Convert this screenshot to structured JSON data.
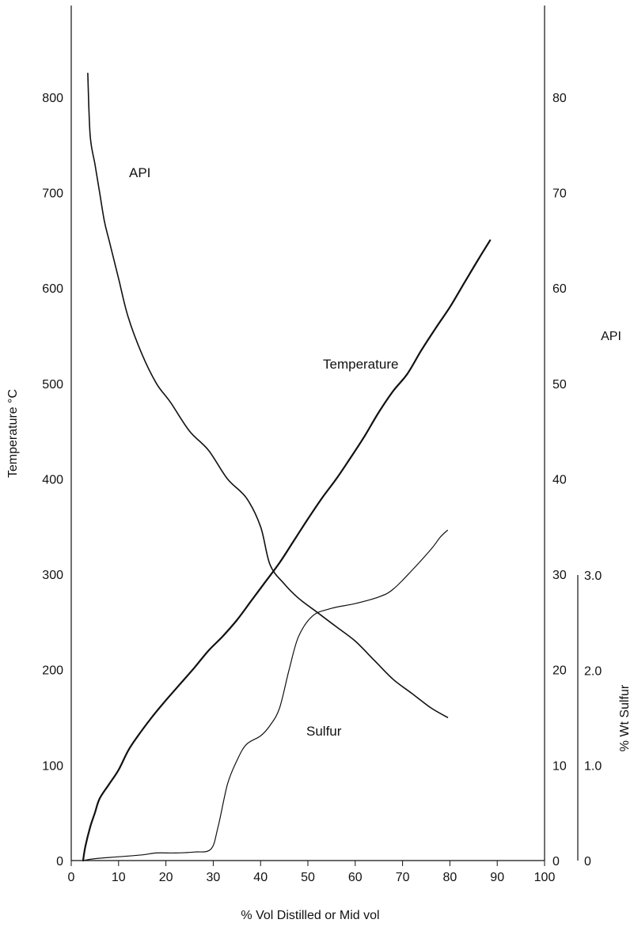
{
  "chart_data": {
    "type": "line",
    "title": "",
    "xlabel": "% Vol Distilled or Mid vol",
    "ylabel_left": "Temperature °C",
    "ylabel_right_api": "API",
    "ylabel_right_sulfur": "% Wt Sulfur",
    "xlim": [
      0,
      100
    ],
    "ylim_temperature": [
      0,
      850
    ],
    "ylim_api": [
      0,
      85
    ],
    "ylim_sulfur": [
      0,
      3.0
    ],
    "grid": false,
    "legend": "none (curves labeled inline)",
    "x_ticks": [
      0,
      10,
      20,
      30,
      40,
      50,
      60,
      70,
      80,
      90,
      100
    ],
    "temperature_ticks": [
      0,
      100,
      200,
      300,
      400,
      500,
      600,
      700,
      800
    ],
    "api_ticks": [
      0,
      10,
      20,
      30,
      40,
      50,
      60,
      70,
      80
    ],
    "sulfur_ticks": [
      {
        "value": 0,
        "label": "0"
      },
      {
        "value": 1.0,
        "label": "1.0"
      },
      {
        "value": 2.0,
        "label": "2.0"
      },
      {
        "value": 3.0,
        "label": "3.0"
      }
    ],
    "series": [
      {
        "name": "Temperature",
        "axis": "temperature",
        "points": [
          [
            2.5,
            0
          ],
          [
            3,
            15
          ],
          [
            4,
            35
          ],
          [
            5,
            50
          ],
          [
            6,
            65
          ],
          [
            8,
            80
          ],
          [
            10,
            95
          ],
          [
            12,
            115
          ],
          [
            14,
            130
          ],
          [
            17,
            150
          ],
          [
            20,
            168
          ],
          [
            23,
            185
          ],
          [
            26,
            202
          ],
          [
            29,
            220
          ],
          [
            32,
            235
          ],
          [
            35,
            252
          ],
          [
            38,
            272
          ],
          [
            41,
            292
          ],
          [
            44,
            312
          ],
          [
            47,
            335
          ],
          [
            50,
            358
          ],
          [
            53,
            380
          ],
          [
            56,
            400
          ],
          [
            59,
            422
          ],
          [
            62,
            445
          ],
          [
            65,
            470
          ],
          [
            68,
            492
          ],
          [
            71,
            510
          ],
          [
            74,
            535
          ],
          [
            77,
            558
          ],
          [
            80,
            580
          ],
          [
            83,
            605
          ],
          [
            86,
            630
          ],
          [
            88.5,
            650
          ]
        ]
      },
      {
        "name": "API",
        "axis": "api",
        "points": [
          [
            3.5,
            82.5
          ],
          [
            4,
            76
          ],
          [
            5,
            73
          ],
          [
            6,
            70
          ],
          [
            7,
            67
          ],
          [
            8,
            65
          ],
          [
            10,
            61
          ],
          [
            12,
            57
          ],
          [
            15,
            53
          ],
          [
            18,
            50
          ],
          [
            21,
            48
          ],
          [
            25,
            45
          ],
          [
            29,
            43
          ],
          [
            33,
            40
          ],
          [
            37,
            38
          ],
          [
            40,
            35
          ],
          [
            42,
            31
          ],
          [
            45,
            29
          ],
          [
            48,
            27.5
          ],
          [
            52,
            26
          ],
          [
            56,
            24.5
          ],
          [
            60,
            23
          ],
          [
            64,
            21
          ],
          [
            68,
            19
          ],
          [
            72,
            17.5
          ],
          [
            76,
            16
          ],
          [
            79.5,
            15
          ]
        ]
      },
      {
        "name": "Sulfur",
        "axis": "sulfur",
        "points": [
          [
            2.5,
            0
          ],
          [
            5,
            0.02
          ],
          [
            10,
            0.04
          ],
          [
            15,
            0.06
          ],
          [
            18,
            0.08
          ],
          [
            22,
            0.08
          ],
          [
            26,
            0.09
          ],
          [
            29.5,
            0.12
          ],
          [
            31,
            0.35
          ],
          [
            33,
            0.8
          ],
          [
            35,
            1.05
          ],
          [
            37,
            1.22
          ],
          [
            40,
            1.31
          ],
          [
            42,
            1.42
          ],
          [
            44,
            1.6
          ],
          [
            46,
            2.0
          ],
          [
            48,
            2.35
          ],
          [
            51,
            2.57
          ],
          [
            55,
            2.65
          ],
          [
            60,
            2.7
          ],
          [
            65,
            2.77
          ],
          [
            68,
            2.85
          ],
          [
            72,
            3.05
          ],
          [
            76,
            3.27
          ],
          [
            78,
            3.4
          ],
          [
            79.5,
            3.47
          ]
        ]
      }
    ],
    "annotations": [
      {
        "text": "API",
        "series": "API"
      },
      {
        "text": "Temperature",
        "series": "Temperature"
      },
      {
        "text": "Sulfur",
        "series": "Sulfur"
      }
    ],
    "line_color": "#111111",
    "background": "#ffffff"
  }
}
